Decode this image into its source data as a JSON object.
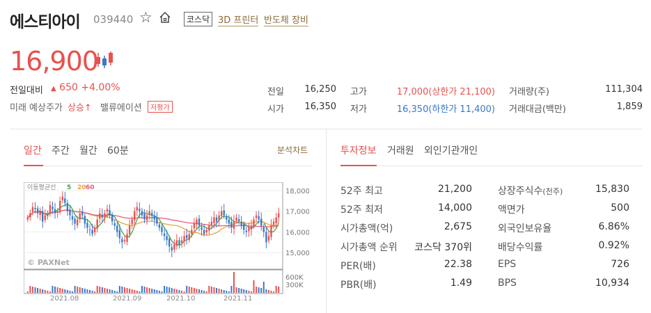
{
  "stock": {
    "name": "에스티아이",
    "code": "039440",
    "market": "코스닥",
    "themes": [
      "3D 프린터",
      "반도체 장비"
    ]
  },
  "price": {
    "current": "16,900",
    "change_label": "전일대비",
    "change_arrow": "▲",
    "change_value": "650",
    "change_percent": "+4.00%",
    "future_label": "미래 예상주가",
    "future_value": "상승↑",
    "valuation_label": "밸류에이션",
    "valuation_badge": "저평가"
  },
  "quote": {
    "prev_close_label": "전일",
    "prev_close": "16,250",
    "open_label": "시가",
    "open": "16,350",
    "high_label": "고가",
    "high": "17,000(상한가 21,100)",
    "low_label": "저가",
    "low": "16,350(하한가 11,400)",
    "volume_label": "거래량(주)",
    "volume": "111,304",
    "amount_label": "거래대금(백만)",
    "amount": "1,859"
  },
  "chart_tabs": [
    "일간",
    "주간",
    "월간",
    "60분"
  ],
  "analysis_link": "분석차트",
  "info_tabs": [
    "투자정보",
    "거래원",
    "외인기관개인"
  ],
  "info_rows": [
    {
      "l1": "52주 최고",
      "v1": "21,200",
      "l2": "상장주식수",
      "u2": "(천주)",
      "v2": "15,830"
    },
    {
      "l1": "52주 최저",
      "v1": "14,000",
      "l2": "액면가",
      "u2": "",
      "v2": "500"
    },
    {
      "l1": "시가총액(억)",
      "v1": "2,675",
      "l2": "외국인보유율",
      "u2": "",
      "v2": "6.86%"
    },
    {
      "l1": "시가총액 순위",
      "v1": "코스닥 370위",
      "l2": "배당수익률",
      "u2": "",
      "v2": "0.92%"
    },
    {
      "l1": "PER(배)",
      "v1": "22.38",
      "l2": "EPS",
      "u2": "",
      "v2": "726"
    },
    {
      "l1": "PBR(배)",
      "v1": "1.49",
      "l2": "BPS",
      "u2": "",
      "v2": "10,934"
    }
  ],
  "chart": {
    "ma_label": "이동평균선",
    "ma_periods": [
      "5",
      "20",
      "60"
    ],
    "watermark": "© PAXNet",
    "y_ticks": [
      "18,000",
      "17,000",
      "16,000",
      "15,000"
    ],
    "vol_ticks": [
      "600K",
      "300K"
    ],
    "x_ticks": [
      "2021.08",
      "2021.09",
      "2021.10",
      "2021.11"
    ]
  },
  "colors": {
    "up": "#e8514d",
    "down": "#3a78c9",
    "accent": "#e8514d",
    "link": "#8a6a3a"
  }
}
